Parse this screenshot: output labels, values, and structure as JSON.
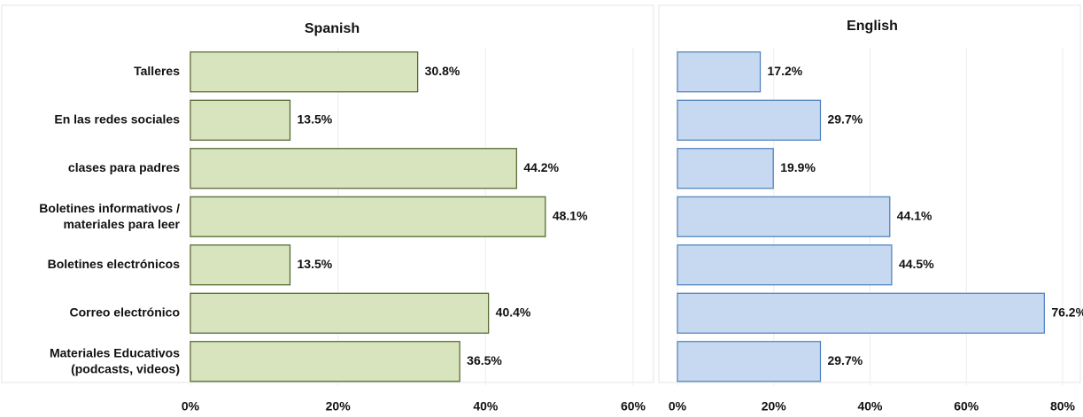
{
  "chart_data": [
    {
      "type": "hbar",
      "title": "Spanish",
      "categories": [
        "Talleres",
        "En las redes sociales",
        "clases para padres",
        "Boletines informativos /\nmateriales para leer",
        "Boletines electrónicos",
        "Correo electrónico",
        "Materiales Educativos\n(podcasts, videos)"
      ],
      "values": [
        30.8,
        13.5,
        44.2,
        48.1,
        13.5,
        40.4,
        36.5
      ],
      "value_labels": [
        "30.8%",
        "13.5%",
        "44.2%",
        "48.1%",
        "13.5%",
        "40.4%",
        "36.5%"
      ],
      "color": "#d7e4bd",
      "edge_color": "#4f6228",
      "xlim": [
        0,
        60
      ],
      "xticks": [
        {
          "value": 0,
          "label": "0%"
        },
        {
          "value": 20,
          "label": "20%"
        },
        {
          "value": 40,
          "label": "40%"
        },
        {
          "value": 60,
          "label": "60%"
        }
      ]
    },
    {
      "type": "hbar",
      "title": "English",
      "values": [
        17.2,
        29.7,
        19.9,
        44.1,
        44.5,
        76.2,
        29.7
      ],
      "value_labels": [
        "17.2%",
        "29.7%",
        "19.9%",
        "44.1%",
        "44.5%",
        "76.2%",
        "29.7%"
      ],
      "color": "#c6d9f1",
      "edge_color": "#4a7ebb",
      "xlim": [
        0,
        80
      ],
      "xticks": [
        {
          "value": 0,
          "label": "0%"
        },
        {
          "value": 20,
          "label": "20%"
        },
        {
          "value": 40,
          "label": "40%"
        },
        {
          "value": 60,
          "label": "60%"
        },
        {
          "value": 80,
          "label": "80%"
        }
      ]
    }
  ]
}
